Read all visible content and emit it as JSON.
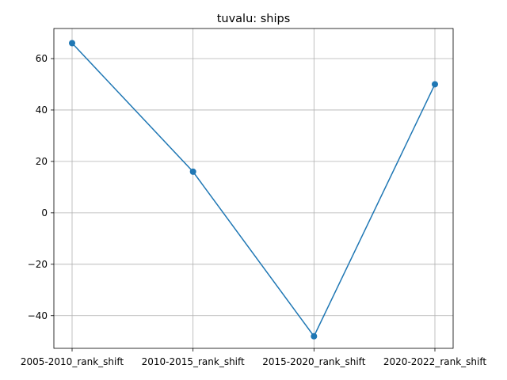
{
  "chart_data": {
    "type": "line",
    "title": "tuvalu: ships",
    "xlabel": "",
    "ylabel": "",
    "categories": [
      "2005-2010_rank_shift",
      "2010-2015_rank_shift",
      "2015-2020_rank_shift",
      "2020-2022_rank_shift"
    ],
    "series": [
      {
        "values": [
          66,
          16,
          -48,
          50
        ]
      }
    ],
    "ylim": [
      -52.7,
      71.7
    ],
    "yticks": [
      -40,
      -20,
      0,
      20,
      40,
      60
    ],
    "grid": true,
    "markers": true,
    "line_color": "#1f77b4"
  }
}
